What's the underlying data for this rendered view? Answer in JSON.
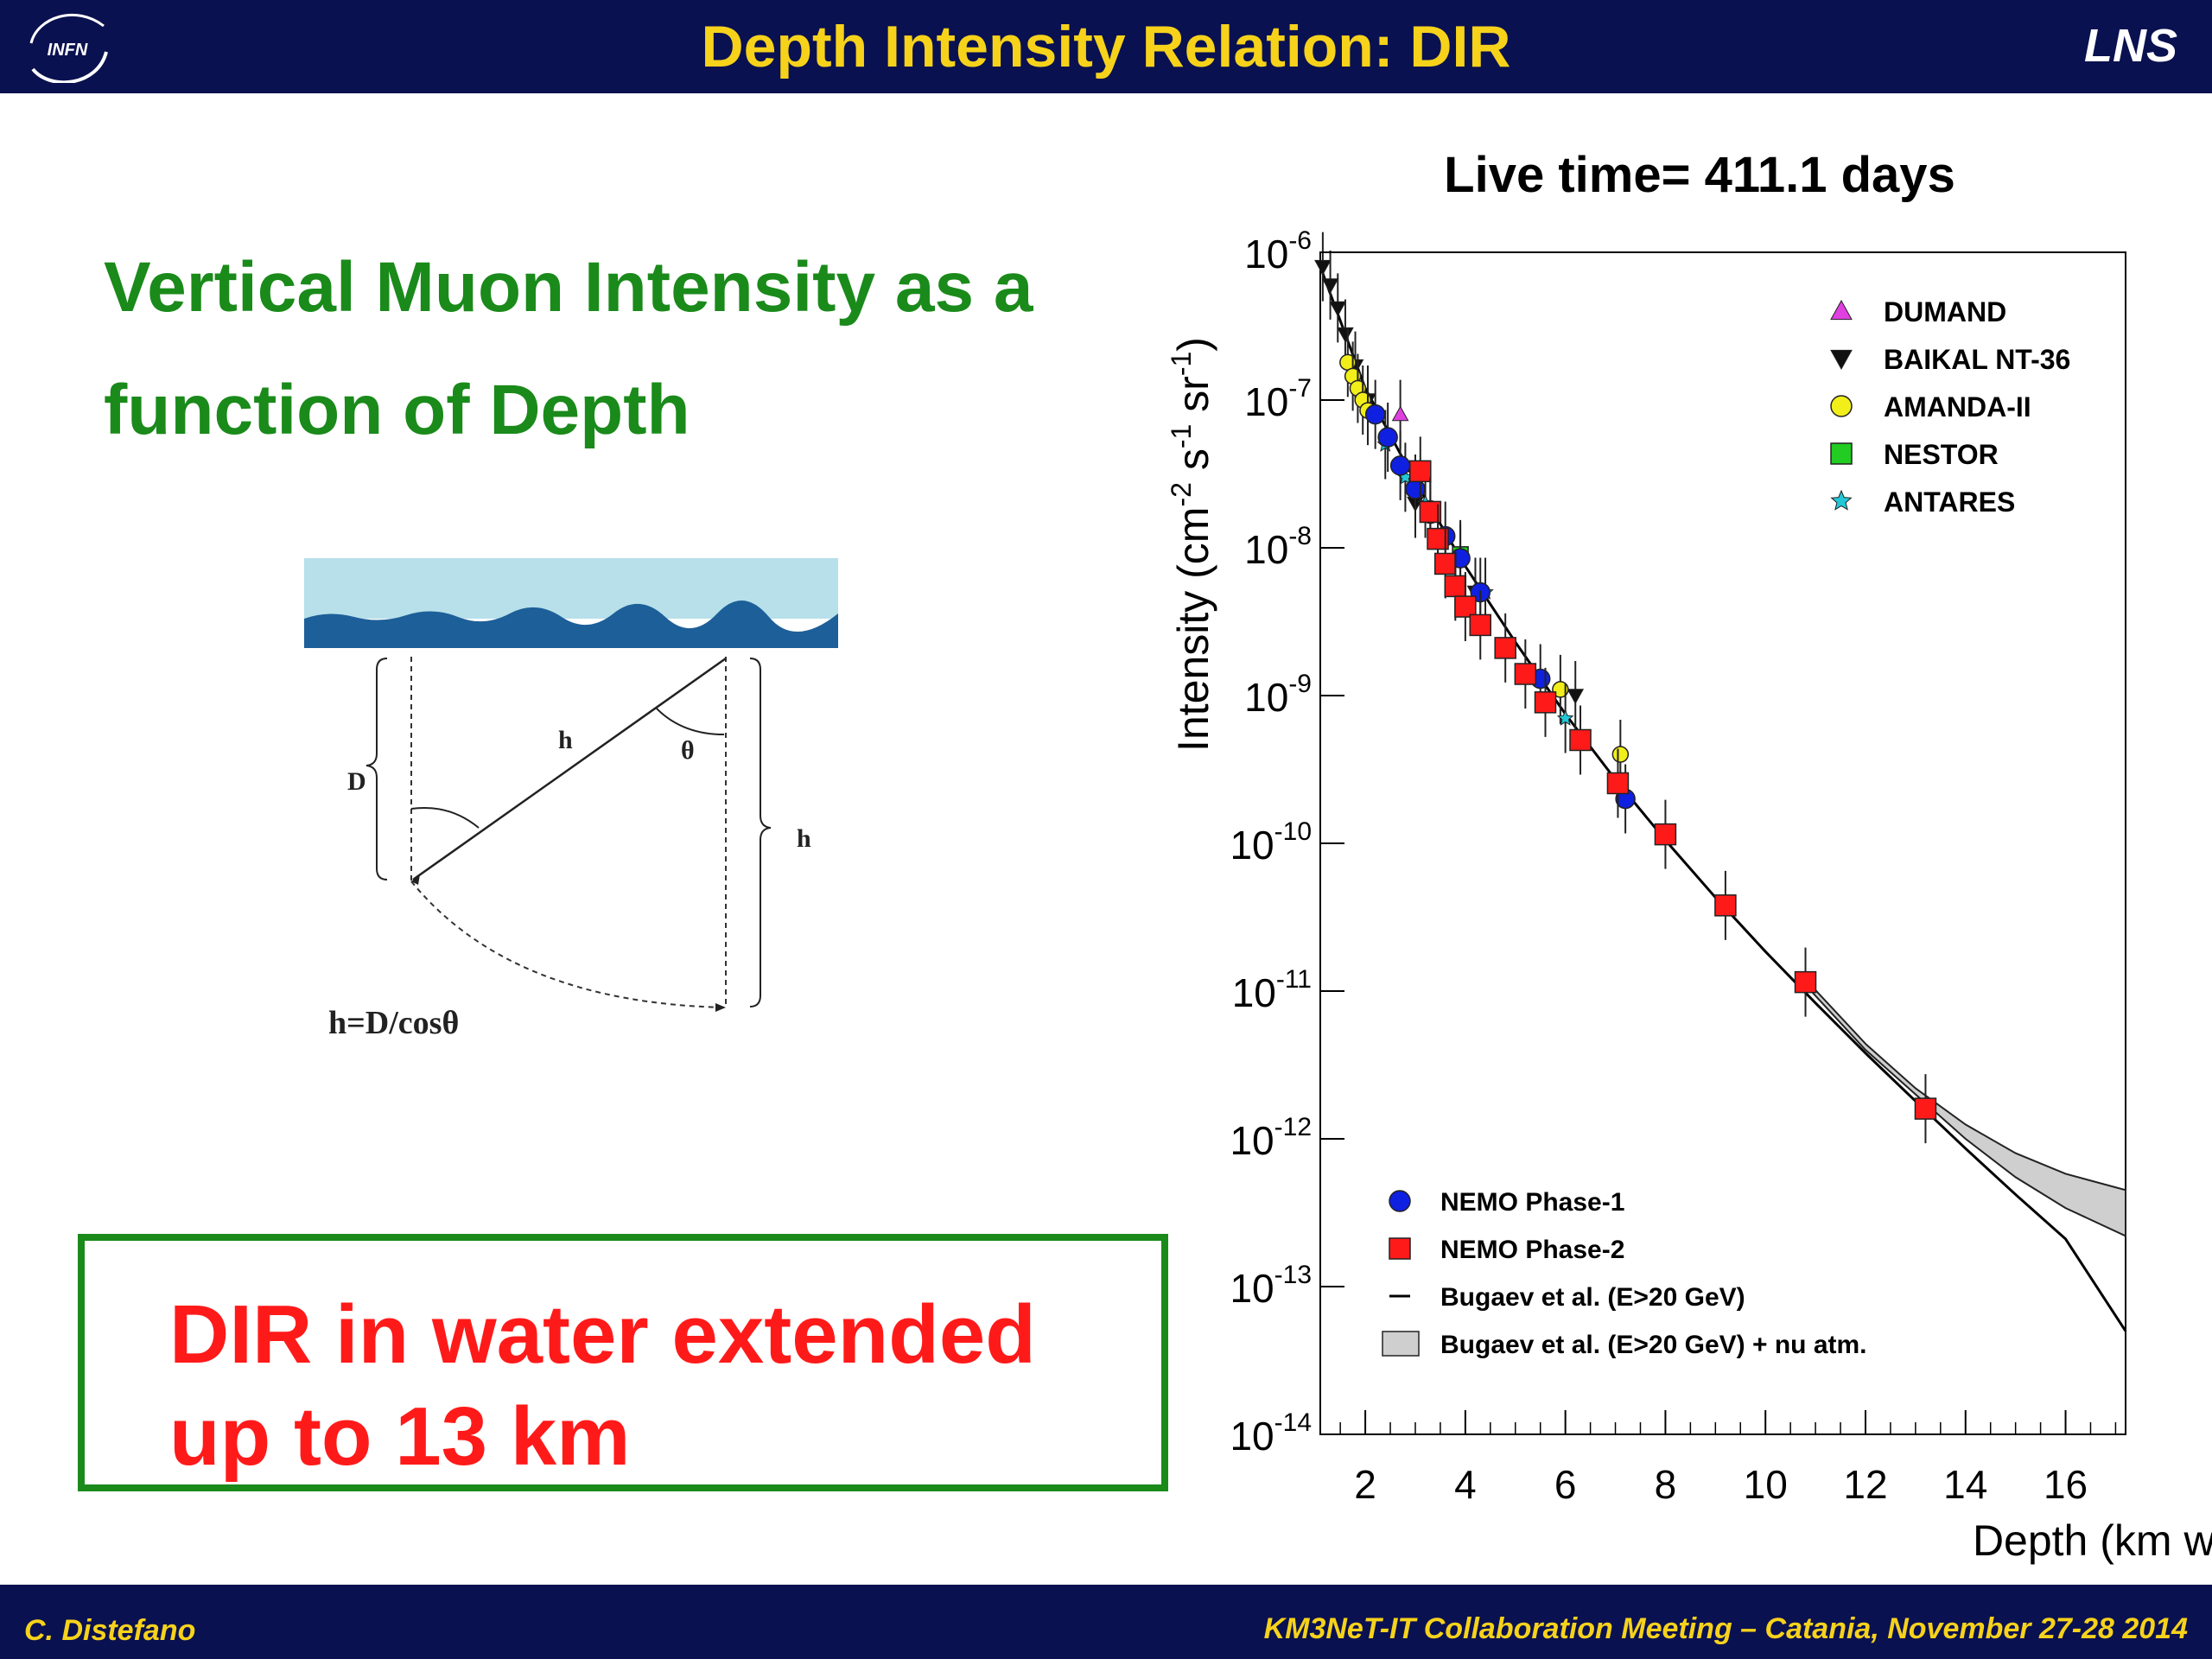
{
  "header": {
    "title": "Depth Intensity Relation: DIR",
    "logo_text": "INFN",
    "right_label": "LNS"
  },
  "footer": {
    "author": "C. Distefano",
    "meeting": "KM3NeT-IT Collaboration Meeting – Catania, November 27-28 2014"
  },
  "main": {
    "heading": "Vertical Muon Intensity as a function of Depth",
    "callout": "DIR in water extended up to 13 km"
  },
  "diagram": {
    "label_D": "D",
    "label_h": "h",
    "label_theta": "θ",
    "label_h_right": "h",
    "formula": "h=D/cosθ"
  },
  "colors": {
    "bar": "#0a1150",
    "title": "#f6d21b",
    "heading": "#1a8a1a",
    "callout_text": "#ff1a1a"
  },
  "chart_data": {
    "type": "scatter",
    "title": "Live time= 411.1 days",
    "xlabel": "Depth (km w.e.)",
    "ylabel": "Intensity (cm-2 s-1 sr-1)",
    "log_y": true,
    "xlim": [
      1.1,
      17.2
    ],
    "ylim": [
      1e-14,
      1e-06
    ],
    "x_ticks": [
      2,
      4,
      6,
      8,
      10,
      12,
      14,
      16
    ],
    "y_ticks": [
      -14,
      -13,
      -12,
      -11,
      -10,
      -9,
      -8,
      -7,
      -6
    ],
    "grid": false,
    "legend_top": {
      "placement": "top-right",
      "entries": [
        "DUMAND",
        "BAIKAL NT-36",
        "AMANDA-II",
        "NESTOR",
        "ANTARES"
      ]
    },
    "legend_bottom": {
      "placement": "bottom-left",
      "entries": [
        "NEMO Phase-1",
        "NEMO Phase-2",
        "Bugaev et al. (E>20 GeV)",
        "Bugaev et al. (E>20 GeV) + nu atm."
      ]
    },
    "series": [
      {
        "name": "DUMAND",
        "marker": "triangle-up",
        "color": "#e040e0",
        "points": [
          [
            2.7,
            8e-08
          ]
        ]
      },
      {
        "name": "BAIKAL NT-36",
        "marker": "triangle-down",
        "color": "#111111",
        "points": [
          [
            1.15,
            8e-07
          ],
          [
            1.3,
            6e-07
          ],
          [
            1.45,
            4.2e-07
          ],
          [
            1.6,
            2.8e-07
          ],
          [
            1.8,
            1.7e-07
          ],
          [
            2.05,
            1e-07
          ],
          [
            3.0,
            2e-08
          ],
          [
            4.2,
            5e-09
          ],
          [
            6.2,
            1e-09
          ]
        ]
      },
      {
        "name": "AMANDA-II",
        "marker": "circle",
        "color": "#f2ee1a",
        "points": [
          [
            1.65,
            1.8e-07
          ],
          [
            1.75,
            1.45e-07
          ],
          [
            1.85,
            1.2e-07
          ],
          [
            1.95,
            1e-07
          ],
          [
            2.05,
            8.5e-08
          ],
          [
            5.9,
            1.1e-09
          ],
          [
            7.1,
            4e-10
          ]
        ]
      },
      {
        "name": "NESTOR",
        "marker": "square",
        "color": "#22cc22",
        "points": [
          [
            3.9,
            9e-09
          ]
        ]
      },
      {
        "name": "ANTARES",
        "marker": "star",
        "color": "#22c8d8",
        "points": [
          [
            2.4,
            5e-08
          ],
          [
            2.8,
            3e-08
          ],
          [
            3.2,
            2e-08
          ],
          [
            4.4,
            5e-09
          ],
          [
            6.0,
            7e-10
          ]
        ]
      },
      {
        "name": "NEMO Phase-1",
        "marker": "circle",
        "color": "#1020e0",
        "points": [
          [
            2.2,
            8e-08
          ],
          [
            2.45,
            5.6e-08
          ],
          [
            2.7,
            3.6e-08
          ],
          [
            3.0,
            2.5e-08
          ],
          [
            3.3,
            1.7e-08
          ],
          [
            3.6,
            1.2e-08
          ],
          [
            3.9,
            8.5e-09
          ],
          [
            4.3,
            5e-09
          ],
          [
            5.5,
            1.3e-09
          ],
          [
            7.2,
            2e-10
          ]
        ]
      },
      {
        "name": "NEMO Phase-2",
        "marker": "square",
        "color": "#ff1a1a",
        "points": [
          [
            3.1,
            3.3e-08
          ],
          [
            3.3,
            1.75e-08
          ],
          [
            3.45,
            1.15e-08
          ],
          [
            3.6,
            7.8e-09
          ],
          [
            3.8,
            5.5e-09
          ],
          [
            4.0,
            4e-09
          ],
          [
            4.3,
            3e-09
          ],
          [
            4.8,
            2.1e-09
          ],
          [
            5.2,
            1.4e-09
          ],
          [
            5.6,
            9e-10
          ],
          [
            6.3,
            5e-10
          ],
          [
            7.05,
            2.55e-10
          ],
          [
            8.0,
            1.15e-10
          ],
          [
            9.2,
            3.8e-11
          ],
          [
            10.8,
            1.15e-11
          ],
          [
            13.2,
            1.6e-12
          ]
        ]
      }
    ],
    "curves": [
      {
        "name": "Bugaev et al. (E>20 GeV)",
        "points": [
          [
            1.1,
            8e-07
          ],
          [
            2,
            1.2e-07
          ],
          [
            3,
            2.8e-08
          ],
          [
            4,
            7.5e-09
          ],
          [
            5,
            2.3e-09
          ],
          [
            6,
            7.5e-10
          ],
          [
            7,
            2.7e-10
          ],
          [
            8,
            1.05e-10
          ],
          [
            9,
            4.3e-11
          ],
          [
            10,
            1.85e-11
          ],
          [
            11,
            8.3e-12
          ],
          [
            12,
            3.8e-12
          ],
          [
            13,
            1.8e-12
          ],
          [
            14,
            8.6e-13
          ],
          [
            15,
            4.2e-13
          ],
          [
            16,
            2.1e-13
          ],
          [
            17.2,
            5e-14
          ]
        ]
      },
      {
        "name": "Bugaev et al. (E>20 GeV) + nu atm.",
        "upper": [
          [
            10.8,
            1.2e-11
          ],
          [
            12,
            4.4e-12
          ],
          [
            13,
            2.2e-12
          ],
          [
            14,
            1.25e-12
          ],
          [
            15,
            8e-13
          ],
          [
            16,
            5.8e-13
          ],
          [
            17.2,
            4.5e-13
          ]
        ],
        "lower": [
          [
            10.8,
            1.1e-11
          ],
          [
            12,
            4e-12
          ],
          [
            13,
            2e-12
          ],
          [
            14,
            1e-12
          ],
          [
            15,
            5.5e-13
          ],
          [
            16,
            3.4e-13
          ],
          [
            17.2,
            2.2e-13
          ]
        ]
      }
    ]
  }
}
